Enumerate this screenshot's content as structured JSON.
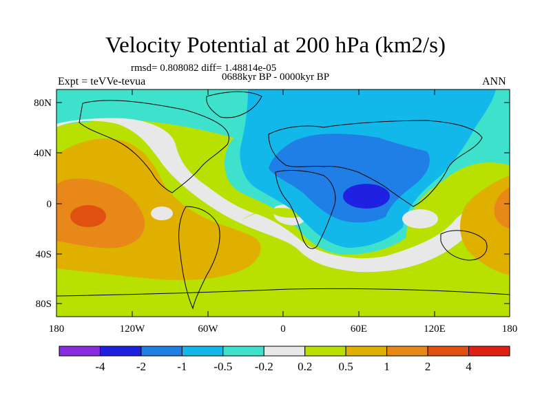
{
  "plot": {
    "title": "Velocity Potential at 200 hPa (km2/s)",
    "stats": "rmsd= 0.808082 diff= 1.48814e-05",
    "experiment": "Expt = teVVe-tevua",
    "period": "0688kyr BP - 0000kyr BP",
    "season": "ANN"
  },
  "axes": {
    "lat_ticks": [
      "80N",
      "40N",
      "0",
      "40S",
      "80S"
    ],
    "lon_ticks": [
      "180",
      "120W",
      "60W",
      "0",
      "60E",
      "120E",
      "180"
    ]
  },
  "colorbar": {
    "colors": [
      "#8a2be2",
      "#2020e0",
      "#1f7fe6",
      "#13b8ea",
      "#3ee2cc",
      "#e8e8e8",
      "#b8e000",
      "#e0b000",
      "#e88818",
      "#e05010",
      "#e02010"
    ],
    "labels": [
      "-4",
      "-2",
      "-1",
      "-0.5",
      "-0.2",
      "0.2",
      "0.5",
      "1",
      "2",
      "4"
    ]
  }
}
